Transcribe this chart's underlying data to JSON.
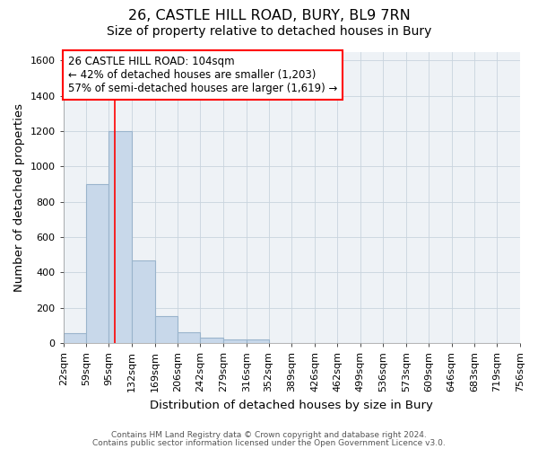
{
  "title_line1": "26, CASTLE HILL ROAD, BURY, BL9 7RN",
  "title_line2": "Size of property relative to detached houses in Bury",
  "xlabel": "Distribution of detached houses by size in Bury",
  "ylabel": "Number of detached properties",
  "bin_edges": [
    22,
    59,
    95,
    132,
    169,
    206,
    242,
    279,
    316,
    352,
    389,
    426,
    462,
    499,
    536,
    573,
    609,
    646,
    683,
    719,
    756
  ],
  "bar_heights": [
    55,
    900,
    1200,
    470,
    155,
    60,
    30,
    20,
    20,
    0,
    0,
    0,
    0,
    0,
    0,
    0,
    0,
    0,
    0,
    0
  ],
  "bar_color": "#c8d8ea",
  "bar_edgecolor": "#9ab4cc",
  "bar_linewidth": 0.8,
  "grid_color": "#c8d4de",
  "background_color": "#eef2f6",
  "red_line_x": 104,
  "annotation_line1": "26 CASTLE HILL ROAD: 104sqm",
  "annotation_line2": "← 42% of detached houses are smaller (1,203)",
  "annotation_line3": "57% of semi-detached houses are larger (1,619) →",
  "annotation_box_color": "white",
  "annotation_box_edgecolor": "red",
  "ylim": [
    0,
    1650
  ],
  "yticks": [
    0,
    200,
    400,
    600,
    800,
    1000,
    1200,
    1400,
    1600
  ],
  "footer_line1": "Contains HM Land Registry data © Crown copyright and database right 2024.",
  "footer_line2": "Contains public sector information licensed under the Open Government Licence v3.0.",
  "title_fontsize": 11.5,
  "subtitle_fontsize": 10,
  "axis_label_fontsize": 9.5,
  "tick_fontsize": 8,
  "annotation_fontsize": 8.5,
  "footer_fontsize": 6.5
}
